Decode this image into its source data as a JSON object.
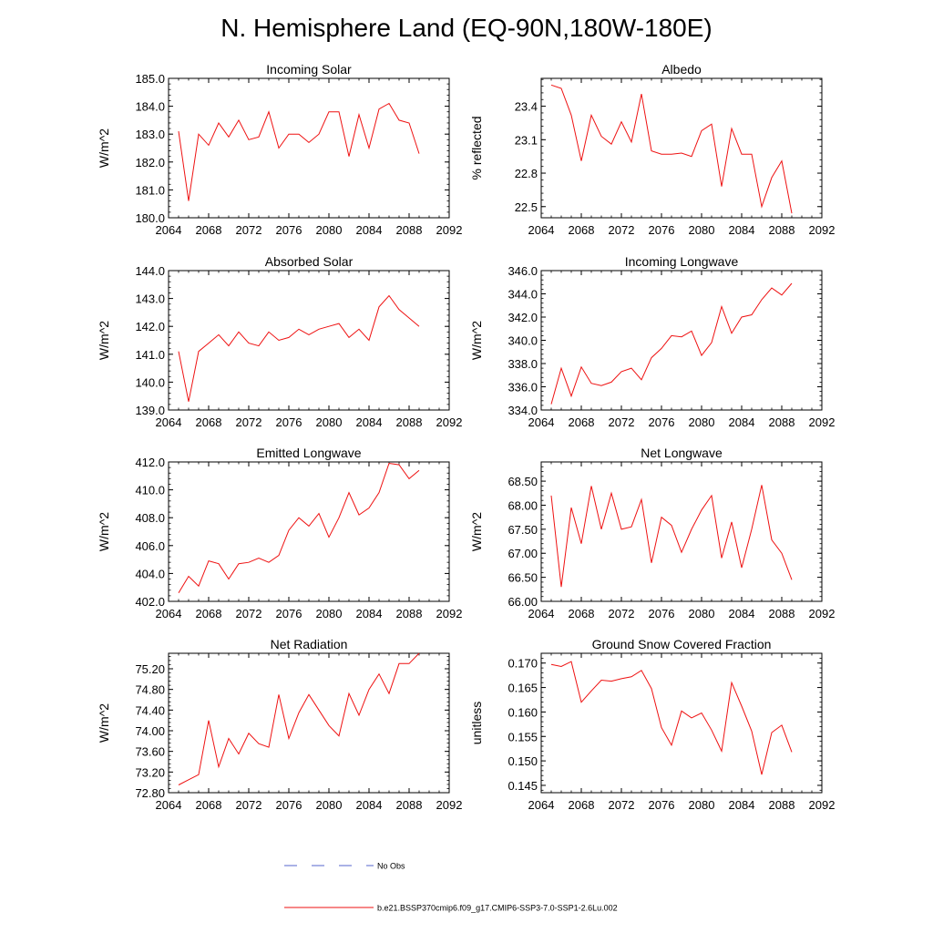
{
  "figure_title": "N. Hemisphere Land (EQ-90N,180W-180E)",
  "legend": {
    "obs_label": "No Obs",
    "obs_color": "#5566cc",
    "model_label": "b.e21.BSSP370cmip6.f09_g17.CMIP6-SSP3-7.0-SSP1-2.6Lu.002",
    "model_color": "#ee1111"
  },
  "chart_data": [
    {
      "type": "line",
      "title": "Incoming Solar",
      "ylabel": "W/m^2",
      "xlim": [
        2064,
        2092
      ],
      "xticks": [
        "2064",
        "2068",
        "2072",
        "2076",
        "2080",
        "2084",
        "2088",
        "2092"
      ],
      "ylim": [
        180,
        185
      ],
      "yticks": [
        "180.0",
        "181.0",
        "182.0",
        "183.0",
        "184.0",
        "185.0"
      ],
      "x": [
        2065,
        2066,
        2067,
        2068,
        2069,
        2070,
        2071,
        2072,
        2073,
        2074,
        2075,
        2076,
        2077,
        2078,
        2079,
        2080,
        2081,
        2082,
        2083,
        2084,
        2085,
        2086,
        2087,
        2088,
        2089
      ],
      "series": [
        {
          "values": [
            183.1,
            180.6,
            183.0,
            182.6,
            183.4,
            182.9,
            183.5,
            182.8,
            182.9,
            183.8,
            182.5,
            183.0,
            183.0,
            182.7,
            183.0,
            183.8,
            183.8,
            182.2,
            183.7,
            182.5,
            183.9,
            184.1,
            183.5,
            183.4,
            182.3
          ]
        }
      ]
    },
    {
      "type": "line",
      "title": "Albedo",
      "ylabel": "% reflected",
      "xlim": [
        2064,
        2092
      ],
      "xticks": [
        "2064",
        "2068",
        "2072",
        "2076",
        "2080",
        "2084",
        "2088",
        "2092"
      ],
      "ylim": [
        22.4,
        23.65
      ],
      "yticks": [
        "22.5",
        "22.8",
        "23.1",
        "23.4"
      ],
      "x": [
        2065,
        2066,
        2067,
        2068,
        2069,
        2070,
        2071,
        2072,
        2073,
        2074,
        2075,
        2076,
        2077,
        2078,
        2079,
        2080,
        2081,
        2082,
        2083,
        2084,
        2085,
        2086,
        2087,
        2088,
        2089
      ],
      "series": [
        {
          "values": [
            23.59,
            23.56,
            23.32,
            22.91,
            23.32,
            23.13,
            23.06,
            23.26,
            23.08,
            23.51,
            23.0,
            22.97,
            22.97,
            22.98,
            22.95,
            23.18,
            23.24,
            22.68,
            23.2,
            22.97,
            22.97,
            22.5,
            22.76,
            22.91,
            22.44
          ]
        }
      ]
    },
    {
      "type": "line",
      "title": "Absorbed Solar",
      "ylabel": "W/m^2",
      "xlim": [
        2064,
        2092
      ],
      "xticks": [
        "2064",
        "2068",
        "2072",
        "2076",
        "2080",
        "2084",
        "2088",
        "2092"
      ],
      "ylim": [
        139,
        144
      ],
      "yticks": [
        "139.0",
        "140.0",
        "141.0",
        "142.0",
        "143.0",
        "144.0"
      ],
      "x": [
        2065,
        2066,
        2067,
        2068,
        2069,
        2070,
        2071,
        2072,
        2073,
        2074,
        2075,
        2076,
        2077,
        2078,
        2079,
        2080,
        2081,
        2082,
        2083,
        2084,
        2085,
        2086,
        2087,
        2088,
        2089
      ],
      "series": [
        {
          "values": [
            141.1,
            139.3,
            141.1,
            141.4,
            141.7,
            141.3,
            141.8,
            141.4,
            141.3,
            141.8,
            141.5,
            141.6,
            141.9,
            141.7,
            141.9,
            142.0,
            142.1,
            141.6,
            141.9,
            141.5,
            142.7,
            143.1,
            142.6,
            142.3,
            142.0
          ]
        }
      ]
    },
    {
      "type": "line",
      "title": "Incoming Longwave",
      "ylabel": "W/m^2",
      "xlim": [
        2064,
        2092
      ],
      "xticks": [
        "2064",
        "2068",
        "2072",
        "2076",
        "2080",
        "2084",
        "2088",
        "2092"
      ],
      "ylim": [
        334,
        346
      ],
      "yticks": [
        "334.0",
        "336.0",
        "338.0",
        "340.0",
        "342.0",
        "344.0",
        "346.0"
      ],
      "x": [
        2065,
        2066,
        2067,
        2068,
        2069,
        2070,
        2071,
        2072,
        2073,
        2074,
        2075,
        2076,
        2077,
        2078,
        2079,
        2080,
        2081,
        2082,
        2083,
        2084,
        2085,
        2086,
        2087,
        2088,
        2089
      ],
      "series": [
        {
          "values": [
            334.5,
            337.6,
            335.2,
            337.7,
            336.3,
            336.1,
            336.4,
            337.3,
            337.6,
            336.6,
            338.5,
            339.3,
            340.4,
            340.3,
            340.8,
            338.7,
            339.8,
            342.9,
            340.6,
            342.0,
            342.2,
            343.5,
            344.5,
            343.9,
            344.9
          ]
        }
      ]
    },
    {
      "type": "line",
      "title": "Emitted Longwave",
      "ylabel": "W/m^2",
      "xlim": [
        2064,
        2092
      ],
      "xticks": [
        "2064",
        "2068",
        "2072",
        "2076",
        "2080",
        "2084",
        "2088",
        "2092"
      ],
      "ylim": [
        402,
        412
      ],
      "yticks": [
        "402.0",
        "404.0",
        "406.0",
        "408.0",
        "410.0",
        "412.0"
      ],
      "x": [
        2065,
        2066,
        2067,
        2068,
        2069,
        2070,
        2071,
        2072,
        2073,
        2074,
        2075,
        2076,
        2077,
        2078,
        2079,
        2080,
        2081,
        2082,
        2083,
        2084,
        2085,
        2086,
        2087,
        2088,
        2089
      ],
      "series": [
        {
          "values": [
            402.6,
            403.8,
            403.1,
            404.9,
            404.7,
            403.6,
            404.7,
            404.8,
            405.1,
            404.8,
            405.3,
            407.1,
            408.0,
            407.4,
            408.3,
            406.6,
            408.0,
            409.8,
            408.2,
            408.7,
            409.8,
            411.9,
            411.8,
            410.8,
            411.4
          ]
        }
      ]
    },
    {
      "type": "line",
      "title": "Net Longwave",
      "ylabel": "W/m^2",
      "xlim": [
        2064,
        2092
      ],
      "xticks": [
        "2064",
        "2068",
        "2072",
        "2076",
        "2080",
        "2084",
        "2088",
        "2092"
      ],
      "ylim": [
        66,
        68.9
      ],
      "yticks": [
        "66.00",
        "66.50",
        "67.00",
        "67.50",
        "68.00",
        "68.50"
      ],
      "x": [
        2065,
        2066,
        2067,
        2068,
        2069,
        2070,
        2071,
        2072,
        2073,
        2074,
        2075,
        2076,
        2077,
        2078,
        2079,
        2080,
        2081,
        2082,
        2083,
        2084,
        2085,
        2086,
        2087,
        2088,
        2089
      ],
      "series": [
        {
          "values": [
            68.2,
            66.3,
            67.95,
            67.2,
            68.4,
            67.5,
            68.25,
            67.5,
            67.55,
            68.12,
            66.8,
            67.75,
            67.58,
            67.02,
            67.5,
            67.9,
            68.2,
            66.9,
            67.65,
            66.7,
            67.5,
            68.42,
            67.28,
            67.0,
            66.45
          ]
        }
      ]
    },
    {
      "type": "line",
      "title": "Net Radiation",
      "ylabel": "W/m^2",
      "xlim": [
        2064,
        2092
      ],
      "xticks": [
        "2064",
        "2068",
        "2072",
        "2076",
        "2080",
        "2084",
        "2088",
        "2092"
      ],
      "ylim": [
        72.8,
        75.5
      ],
      "yticks": [
        "72.80",
        "73.20",
        "73.60",
        "74.00",
        "74.40",
        "74.80",
        "75.20"
      ],
      "x": [
        2065,
        2066,
        2067,
        2068,
        2069,
        2070,
        2071,
        2072,
        2073,
        2074,
        2075,
        2076,
        2077,
        2078,
        2079,
        2080,
        2081,
        2082,
        2083,
        2084,
        2085,
        2086,
        2087,
        2088,
        2089
      ],
      "series": [
        {
          "values": [
            72.95,
            73.05,
            73.15,
            74.2,
            73.3,
            73.85,
            73.55,
            73.95,
            73.75,
            73.68,
            74.7,
            73.85,
            74.35,
            74.7,
            74.4,
            74.1,
            73.9,
            74.72,
            74.3,
            74.8,
            75.1,
            74.72,
            75.3,
            75.3,
            75.5
          ]
        }
      ]
    },
    {
      "type": "line",
      "title": "Ground Snow Covered Fraction",
      "ylabel": "unitless",
      "xlim": [
        2064,
        2092
      ],
      "xticks": [
        "2064",
        "2068",
        "2072",
        "2076",
        "2080",
        "2084",
        "2088",
        "2092"
      ],
      "ylim": [
        0.1435,
        0.172
      ],
      "yticks": [
        "0.145",
        "0.150",
        "0.155",
        "0.160",
        "0.165",
        "0.170"
      ],
      "x": [
        2065,
        2066,
        2067,
        2068,
        2069,
        2070,
        2071,
        2072,
        2073,
        2074,
        2075,
        2076,
        2077,
        2078,
        2079,
        2080,
        2081,
        2082,
        2083,
        2084,
        2085,
        2086,
        2087,
        2088,
        2089
      ],
      "series": [
        {
          "values": [
            0.1697,
            0.1693,
            0.1703,
            0.162,
            0.1643,
            0.1665,
            0.1663,
            0.1668,
            0.1672,
            0.1685,
            0.1648,
            0.1568,
            0.1532,
            0.1602,
            0.1588,
            0.1598,
            0.1563,
            0.152,
            0.166,
            0.1612,
            0.1561,
            0.1472,
            0.1558,
            0.1573,
            0.1518
          ]
        }
      ]
    }
  ]
}
